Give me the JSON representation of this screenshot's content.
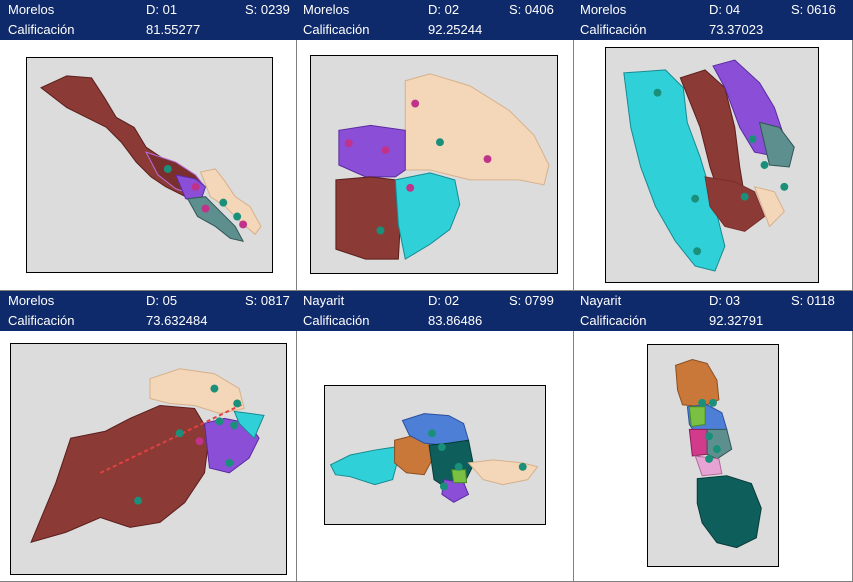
{
  "cards": [
    {
      "state": "Morelos",
      "district": "D: 01",
      "section": "S: 0239",
      "score_label": "Calificación",
      "score": "81.55277",
      "map_icon": "electoral-section-map"
    },
    {
      "state": "Morelos",
      "district": "D: 02",
      "section": "S: 0406",
      "score_label": "Calificación",
      "score": "92.25244",
      "map_icon": "electoral-section-map"
    },
    {
      "state": "Morelos",
      "district": "D: 04",
      "section": "S: 0616",
      "score_label": "Calificación",
      "score": "73.37023",
      "map_icon": "electoral-section-map"
    },
    {
      "state": "Morelos",
      "district": "D: 05",
      "section": "S: 0817",
      "score_label": "Calificación",
      "score": "73.632484",
      "map_icon": "electoral-section-map"
    },
    {
      "state": "Nayarit",
      "district": "D: 02",
      "section": "S: 0799",
      "score_label": "Calificación",
      "score": "83.86486",
      "map_icon": "electoral-section-map"
    },
    {
      "state": "Nayarit",
      "district": "D: 03",
      "section": "S: 0118",
      "score_label": "Calificación",
      "score": "92.32791",
      "map_icon": "electoral-section-map"
    }
  ],
  "colors": {
    "header_bg": "#0f2a6b",
    "map_bg": "#dcdcdc",
    "brown": "#8b3a36",
    "purple": "#8a4fd6",
    "cyan": "#2fd0d8",
    "peach": "#f3d7b8",
    "slate": "#5e8f8f",
    "teal": "#0e5e5b",
    "orange": "#c9783a",
    "blue": "#4d7fd6",
    "green": "#7ac143",
    "magenta": "#d23a8c",
    "pink": "#e7a3d3",
    "marker_e": "#1a8f7a",
    "marker_c": "#c0338a"
  }
}
